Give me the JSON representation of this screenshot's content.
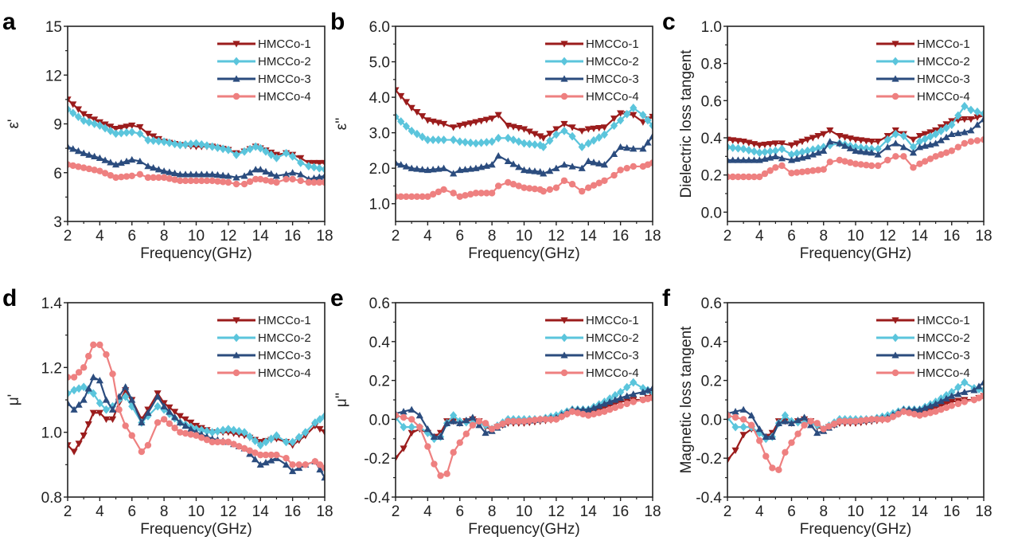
{
  "series_styles": [
    {
      "name": "HMCCo-1",
      "color": "#9b1c1c",
      "marker": "triangle-down"
    },
    {
      "name": "HMCCo-2",
      "color": "#5bc5dc",
      "marker": "diamond"
    },
    {
      "name": "HMCCo-3",
      "color": "#2b4c7e",
      "marker": "triangle-up"
    },
    {
      "name": "HMCCo-4",
      "color": "#ee8080",
      "marker": "circle"
    }
  ],
  "chart_data": [
    {
      "panel": "a",
      "type": "line",
      "title": "",
      "xlabel": "Frequency(GHz)",
      "ylabel": "ε'",
      "xlim": [
        2,
        18
      ],
      "ylim": [
        3,
        15
      ],
      "xticks": [
        2,
        4,
        6,
        8,
        10,
        12,
        14,
        16,
        18
      ],
      "yticks": [
        3,
        6,
        9,
        12,
        15
      ],
      "ytick_labels": [
        "3",
        "6",
        "9",
        "12",
        "15"
      ],
      "legend": "top-right",
      "x": [
        2,
        3,
        4,
        5,
        6,
        6.5,
        7,
        8,
        9,
        10,
        11,
        12,
        12.5,
        13,
        13.7,
        14,
        15,
        15.6,
        16,
        16.5,
        17,
        18
      ],
      "series": [
        {
          "name": "HMCCo-1",
          "values": [
            10.5,
            9.6,
            9.1,
            8.7,
            8.9,
            8.8,
            8.4,
            7.9,
            7.7,
            7.6,
            7.6,
            7.4,
            7.2,
            7.3,
            7.6,
            7.5,
            7.1,
            7.2,
            7.1,
            6.9,
            6.6,
            6.6
          ]
        },
        {
          "name": "HMCCo-2",
          "values": [
            9.9,
            9.2,
            8.9,
            8.4,
            8.5,
            8.4,
            8.0,
            7.9,
            7.7,
            7.8,
            7.6,
            7.4,
            7.1,
            7.3,
            7.6,
            7.5,
            6.9,
            7.2,
            7.0,
            6.6,
            6.4,
            6.2
          ]
        },
        {
          "name": "HMCCo-3",
          "values": [
            7.6,
            7.2,
            6.9,
            6.5,
            6.8,
            6.7,
            6.4,
            6.1,
            5.9,
            5.9,
            5.9,
            5.8,
            5.7,
            5.8,
            6.2,
            6.2,
            5.8,
            5.9,
            6.0,
            5.9,
            5.6,
            5.8
          ]
        },
        {
          "name": "HMCCo-4",
          "values": [
            6.5,
            6.3,
            6.1,
            5.7,
            5.8,
            5.9,
            5.7,
            5.7,
            5.5,
            5.5,
            5.5,
            5.4,
            5.3,
            5.3,
            5.6,
            5.6,
            5.4,
            5.6,
            5.6,
            5.5,
            5.4,
            5.4
          ]
        }
      ]
    },
    {
      "panel": "b",
      "type": "line",
      "title": "",
      "xlabel": "Frequency(GHz)",
      "ylabel": "ε''",
      "xlim": [
        2,
        18
      ],
      "ylim": [
        0.5,
        6.0
      ],
      "xticks": [
        2,
        4,
        6,
        8,
        10,
        12,
        14,
        16,
        18
      ],
      "yticks": [
        1,
        2,
        3,
        4,
        5,
        6
      ],
      "ytick_labels": [
        "1.0",
        "2.0",
        "3.0",
        "4.0",
        "5.0",
        "6.0"
      ],
      "legend": "top-right",
      "x": [
        2,
        3,
        4,
        5,
        5.6,
        6,
        7,
        8,
        8.4,
        9,
        10,
        11,
        11.2,
        12,
        12.5,
        13,
        13.6,
        14,
        15,
        15.6,
        16,
        16.8,
        17.4,
        18
      ],
      "series": [
        {
          "name": "HMCCo-1",
          "values": [
            4.2,
            3.7,
            3.35,
            3.25,
            3.15,
            3.2,
            3.3,
            3.4,
            3.5,
            3.2,
            3.1,
            2.9,
            2.85,
            3.1,
            3.25,
            3.15,
            3.05,
            3.1,
            3.15,
            3.4,
            3.55,
            3.5,
            3.3,
            3.45
          ]
        },
        {
          "name": "HMCCo-2",
          "values": [
            3.45,
            3.05,
            2.8,
            2.8,
            2.8,
            2.75,
            2.7,
            2.75,
            2.85,
            2.85,
            2.7,
            2.65,
            2.6,
            2.95,
            3.05,
            2.9,
            2.6,
            2.7,
            2.95,
            3.2,
            3.35,
            3.7,
            3.5,
            3.2
          ]
        },
        {
          "name": "HMCCo-3",
          "values": [
            2.15,
            2.0,
            1.95,
            2.0,
            1.85,
            1.95,
            2.0,
            2.1,
            2.35,
            2.2,
            1.95,
            1.9,
            1.85,
            2.0,
            2.1,
            2.05,
            2.0,
            2.2,
            2.1,
            2.4,
            2.6,
            2.55,
            2.55,
            2.9
          ]
        },
        {
          "name": "HMCCo-4",
          "values": [
            1.2,
            1.2,
            1.2,
            1.4,
            1.3,
            1.2,
            1.3,
            1.3,
            1.5,
            1.6,
            1.45,
            1.4,
            1.35,
            1.45,
            1.65,
            1.55,
            1.35,
            1.45,
            1.65,
            1.8,
            1.95,
            2.05,
            2.05,
            2.15
          ]
        }
      ]
    },
    {
      "panel": "c",
      "type": "line",
      "title": "",
      "xlabel": "Frequency(GHz)",
      "ylabel": "Dielectric loss tangent",
      "xlim": [
        2,
        18
      ],
      "ylim": [
        -0.05,
        1.0
      ],
      "xticks": [
        2,
        4,
        6,
        8,
        10,
        12,
        14,
        16,
        18
      ],
      "yticks": [
        0,
        0.2,
        0.4,
        0.6,
        0.8,
        1.0
      ],
      "ytick_labels": [
        "0.0",
        "0.2",
        "0.4",
        "0.6",
        "0.8",
        "1.0"
      ],
      "legend": "top-right",
      "x": [
        2,
        3,
        4,
        5,
        5.4,
        6,
        7,
        8,
        8.4,
        9,
        10,
        11,
        11.4,
        12,
        12.5,
        13,
        13.6,
        14,
        15,
        16,
        16.8,
        17.2,
        18
      ],
      "series": [
        {
          "name": "HMCCo-1",
          "values": [
            0.39,
            0.38,
            0.36,
            0.37,
            0.37,
            0.36,
            0.39,
            0.42,
            0.44,
            0.41,
            0.39,
            0.38,
            0.38,
            0.41,
            0.44,
            0.42,
            0.39,
            0.41,
            0.44,
            0.49,
            0.5,
            0.5,
            0.52
          ]
        },
        {
          "name": "HMCCo-2",
          "values": [
            0.35,
            0.34,
            0.32,
            0.33,
            0.34,
            0.31,
            0.33,
            0.35,
            0.36,
            0.37,
            0.35,
            0.34,
            0.34,
            0.39,
            0.42,
            0.41,
            0.35,
            0.38,
            0.42,
            0.47,
            0.57,
            0.55,
            0.53
          ]
        },
        {
          "name": "HMCCo-3",
          "values": [
            0.28,
            0.28,
            0.28,
            0.3,
            0.29,
            0.28,
            0.3,
            0.33,
            0.38,
            0.37,
            0.33,
            0.32,
            0.31,
            0.35,
            0.37,
            0.35,
            0.32,
            0.35,
            0.37,
            0.42,
            0.43,
            0.44,
            0.5
          ]
        },
        {
          "name": "HMCCo-4",
          "values": [
            0.19,
            0.19,
            0.19,
            0.24,
            0.25,
            0.21,
            0.22,
            0.23,
            0.27,
            0.28,
            0.26,
            0.25,
            0.25,
            0.28,
            0.3,
            0.3,
            0.24,
            0.26,
            0.3,
            0.33,
            0.37,
            0.38,
            0.39
          ]
        }
      ]
    },
    {
      "panel": "d",
      "type": "line",
      "title": "",
      "xlabel": "Frequency(GHz)",
      "ylabel": "μ'",
      "xlim": [
        2,
        18
      ],
      "ylim": [
        0.8,
        1.4
      ],
      "xticks": [
        2,
        4,
        6,
        8,
        10,
        12,
        14,
        16,
        18
      ],
      "yticks": [
        0.8,
        1.0,
        1.2,
        1.4
      ],
      "ytick_labels": [
        "0.8",
        "1.0",
        "1.2",
        "1.4"
      ],
      "legend": "top-right",
      "x": [
        2,
        2.4,
        3,
        3.6,
        4,
        4.4,
        4.8,
        5.2,
        5.6,
        6,
        6.6,
        7,
        7.6,
        8,
        9,
        10,
        11,
        12,
        13,
        14,
        15,
        15.6,
        16,
        16.8,
        17.4,
        18
      ],
      "series": [
        {
          "name": "HMCCo-1",
          "values": [
            0.96,
            0.94,
            0.99,
            1.06,
            1.06,
            1.04,
            1.04,
            1.09,
            1.13,
            1.1,
            1.04,
            1.07,
            1.12,
            1.09,
            1.05,
            1.02,
            1.0,
            1.0,
            0.99,
            0.97,
            0.98,
            0.97,
            0.96,
            0.99,
            1.02,
            1.0
          ]
        },
        {
          "name": "HMCCo-2",
          "values": [
            1.12,
            1.13,
            1.14,
            1.12,
            1.09,
            1.07,
            1.08,
            1.1,
            1.11,
            1.08,
            1.03,
            1.05,
            1.08,
            1.07,
            1.03,
            1.01,
            1.0,
            1.01,
            1.0,
            0.96,
            0.99,
            0.97,
            0.97,
            1.0,
            1.03,
            1.05
          ]
        },
        {
          "name": "HMCCo-3",
          "values": [
            1.09,
            1.07,
            1.1,
            1.17,
            1.16,
            1.1,
            1.07,
            1.11,
            1.14,
            1.1,
            1.03,
            1.06,
            1.11,
            1.08,
            1.03,
            1.0,
            0.98,
            0.97,
            0.95,
            0.9,
            0.92,
            0.9,
            0.88,
            0.9,
            0.91,
            0.86
          ]
        },
        {
          "name": "HMCCo-4",
          "values": [
            1.17,
            1.17,
            1.2,
            1.27,
            1.27,
            1.24,
            1.18,
            1.07,
            1.02,
            0.99,
            0.94,
            0.96,
            1.03,
            1.04,
            1.0,
            0.99,
            0.97,
            0.97,
            0.95,
            0.93,
            0.93,
            0.92,
            0.9,
            0.9,
            0.91,
            0.89
          ]
        }
      ]
    },
    {
      "panel": "e",
      "type": "line",
      "title": "",
      "xlabel": "Frequency(GHz)",
      "ylabel": "μ''",
      "xlim": [
        2,
        18
      ],
      "ylim": [
        -0.4,
        0.6
      ],
      "xticks": [
        2,
        4,
        6,
        8,
        10,
        12,
        14,
        16,
        18
      ],
      "yticks": [
        -0.4,
        -0.2,
        0,
        0.2,
        0.4,
        0.6
      ],
      "ytick_labels": [
        "-0.4",
        "-0.2",
        "0.0",
        "0.2",
        "0.4",
        "0.6"
      ],
      "legend": "top-right",
      "x": [
        2,
        2.5,
        3,
        3.5,
        4,
        4.4,
        4.8,
        5.2,
        5.6,
        6,
        6.8,
        7.2,
        7.6,
        8,
        9,
        10,
        11,
        12,
        13,
        14,
        15,
        16,
        16.8,
        17.4,
        18
      ],
      "series": [
        {
          "name": "HMCCo-1",
          "values": [
            -0.2,
            -0.15,
            -0.07,
            -0.05,
            -0.07,
            -0.09,
            -0.07,
            -0.01,
            -0.01,
            -0.02,
            0.0,
            -0.01,
            -0.04,
            -0.05,
            -0.02,
            -0.02,
            -0.01,
            0.0,
            0.04,
            0.03,
            0.06,
            0.09,
            0.1,
            0.1,
            0.12
          ]
        },
        {
          "name": "HMCCo-2",
          "values": [
            0.01,
            -0.04,
            -0.04,
            -0.04,
            -0.07,
            -0.1,
            -0.09,
            -0.02,
            0.02,
            -0.01,
            -0.02,
            -0.02,
            -0.03,
            -0.05,
            0.0,
            0.0,
            0.0,
            0.02,
            0.05,
            0.05,
            0.09,
            0.14,
            0.19,
            0.16,
            0.14
          ]
        },
        {
          "name": "HMCCo-3",
          "values": [
            0.03,
            0.04,
            0.05,
            0.02,
            -0.05,
            -0.09,
            -0.09,
            -0.02,
            -0.01,
            -0.02,
            0.01,
            -0.03,
            -0.07,
            -0.06,
            -0.01,
            -0.01,
            0.0,
            0.01,
            0.05,
            0.05,
            0.08,
            0.11,
            0.13,
            0.14,
            0.16
          ]
        },
        {
          "name": "HMCCo-4",
          "values": [
            0.02,
            0.01,
            0.0,
            -0.04,
            -0.14,
            -0.23,
            -0.29,
            -0.28,
            -0.17,
            -0.12,
            -0.03,
            -0.01,
            -0.02,
            -0.05,
            -0.01,
            -0.01,
            0.0,
            0.0,
            0.04,
            0.02,
            0.04,
            0.07,
            0.09,
            0.1,
            0.11
          ]
        }
      ]
    },
    {
      "panel": "f",
      "type": "line",
      "title": "",
      "xlabel": "Frequency(GHz)",
      "ylabel": "Magnetic loss tangent",
      "xlim": [
        2,
        18
      ],
      "ylim": [
        -0.4,
        0.6
      ],
      "xticks": [
        2,
        4,
        6,
        8,
        10,
        12,
        14,
        16,
        18
      ],
      "yticks": [
        -0.4,
        -0.2,
        0,
        0.2,
        0.4,
        0.6
      ],
      "ytick_labels": [
        "-0.4",
        "-0.2",
        "0.0",
        "0.2",
        "0.4",
        "0.6"
      ],
      "legend": "top-right",
      "x": [
        2,
        2.5,
        3,
        3.5,
        4,
        4.4,
        4.8,
        5.2,
        5.6,
        6,
        6.8,
        7.2,
        7.6,
        8,
        9,
        10,
        11,
        12,
        13,
        14,
        15,
        16,
        16.8,
        17.4,
        18
      ],
      "series": [
        {
          "name": "HMCCo-1",
          "values": [
            -0.21,
            -0.16,
            -0.08,
            -0.05,
            -0.07,
            -0.09,
            -0.07,
            -0.01,
            -0.01,
            -0.02,
            0.0,
            -0.01,
            -0.04,
            -0.05,
            -0.02,
            -0.02,
            -0.01,
            0.0,
            0.04,
            0.03,
            0.06,
            0.09,
            0.1,
            0.1,
            0.12
          ]
        },
        {
          "name": "HMCCo-2",
          "values": [
            0.01,
            -0.04,
            -0.04,
            -0.04,
            -0.07,
            -0.1,
            -0.09,
            -0.02,
            0.02,
            -0.01,
            -0.02,
            -0.02,
            -0.03,
            -0.05,
            0.0,
            0.0,
            0.0,
            0.02,
            0.05,
            0.05,
            0.09,
            0.14,
            0.19,
            0.16,
            0.15
          ]
        },
        {
          "name": "HMCCo-3",
          "values": [
            0.03,
            0.04,
            0.05,
            0.02,
            -0.05,
            -0.09,
            -0.09,
            -0.02,
            -0.01,
            -0.02,
            0.01,
            -0.03,
            -0.07,
            -0.06,
            -0.01,
            -0.01,
            0.0,
            0.01,
            0.05,
            0.05,
            0.08,
            0.12,
            0.14,
            0.15,
            0.19
          ]
        },
        {
          "name": "HMCCo-4",
          "values": [
            0.02,
            0.01,
            0.0,
            -0.03,
            -0.11,
            -0.19,
            -0.25,
            -0.26,
            -0.17,
            -0.12,
            -0.03,
            -0.01,
            -0.02,
            -0.05,
            -0.01,
            -0.01,
            0.0,
            0.0,
            0.04,
            0.02,
            0.04,
            0.07,
            0.09,
            0.1,
            0.12
          ]
        }
      ]
    }
  ]
}
